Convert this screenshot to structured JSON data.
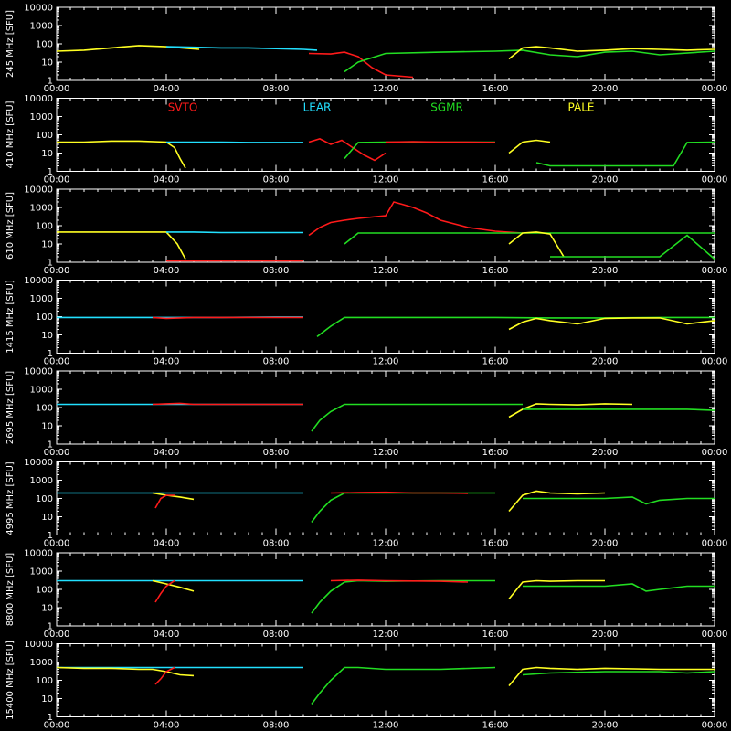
{
  "colors": {
    "background": "#000000",
    "axes": "#ffffff",
    "SVTO": "#ff1a1a",
    "LEAR": "#22e0ff",
    "SGMR": "#22dd22",
    "PALE": "#ffff22"
  },
  "chart_data": {
    "type": "line",
    "scale": "log",
    "ylim": [
      1,
      10000
    ],
    "y_ticks": [
      "10000",
      "1000",
      "100",
      "10",
      "1"
    ],
    "x_range_hours": [
      0,
      24
    ],
    "x_ticks": [
      "00:00",
      "04:00",
      "08:00",
      "12:00",
      "16:00",
      "20:00",
      "00:00"
    ],
    "legend": [
      "SVTO",
      "LEAR",
      "SGMR",
      "PALE"
    ],
    "panels": [
      {
        "ylabel": "245 MHz [SFU]",
        "series": [
          {
            "name": "PALE",
            "x": [
              0,
              1,
              2,
              3,
              4,
              5.2
            ],
            "y": [
              40,
              45,
              60,
              80,
              70,
              50
            ]
          },
          {
            "name": "LEAR",
            "x": [
              4,
              5,
              6,
              7,
              8,
              9,
              9.5
            ],
            "y": [
              70,
              65,
              60,
              60,
              55,
              50,
              45
            ]
          },
          {
            "name": "SVTO",
            "x": [
              9.2,
              10,
              10.5,
              11,
              11.5,
              12,
              13
            ],
            "y": [
              30,
              28,
              35,
              20,
              5,
              2,
              1.5
            ]
          },
          {
            "name": "SGMR",
            "x": [
              10.5,
              11,
              12,
              14,
              16,
              17,
              18,
              19,
              20,
              21,
              22,
              24
            ],
            "y": [
              3,
              10,
              30,
              35,
              40,
              45,
              25,
              20,
              35,
              40,
              25,
              40
            ]
          },
          {
            "name": "PALE",
            "x": [
              16.5,
              17,
              17.5,
              18,
              19,
              20,
              21,
              22,
              23,
              24
            ],
            "y": [
              15,
              60,
              70,
              60,
              40,
              45,
              55,
              50,
              45,
              50
            ]
          }
        ]
      },
      {
        "ylabel": "410 MHz [SFU]",
        "series": [
          {
            "name": "PALE",
            "x": [
              0,
              1,
              2,
              3,
              4,
              4.3,
              4.5,
              4.7
            ],
            "y": [
              40,
              40,
              45,
              45,
              40,
              20,
              5,
              1.5
            ]
          },
          {
            "name": "LEAR",
            "x": [
              4,
              5,
              6,
              7,
              8,
              9
            ],
            "y": [
              40,
              40,
              40,
              38,
              38,
              38
            ]
          },
          {
            "name": "SVTO",
            "x": [
              9.2,
              9.6,
              10,
              10.4,
              10.8,
              11.2,
              11.6,
              12
            ],
            "y": [
              40,
              60,
              30,
              50,
              20,
              8,
              4,
              10
            ]
          },
          {
            "name": "SGMR",
            "x": [
              10.5,
              11,
              12,
              14,
              16
            ],
            "y": [
              5,
              38,
              40,
              40,
              40
            ]
          },
          {
            "name": "SVTO",
            "x": [
              12,
              13,
              14,
              15,
              16
            ],
            "y": [
              40,
              42,
              40,
              40,
              38
            ]
          },
          {
            "name": "PALE",
            "x": [
              16.5,
              17,
              17.5,
              18
            ],
            "y": [
              10,
              40,
              50,
              40
            ]
          },
          {
            "name": "SGMR",
            "x": [
              17.5,
              18,
              20,
              22,
              22.5,
              23,
              24
            ],
            "y": [
              3,
              2,
              2,
              2,
              2,
              38,
              40
            ]
          }
        ]
      },
      {
        "ylabel": "610 MHz [SFU]",
        "series": [
          {
            "name": "PALE",
            "x": [
              0,
              1,
              2,
              3,
              4,
              4.4,
              4.7
            ],
            "y": [
              45,
              45,
              45,
              45,
              45,
              10,
              1.5
            ]
          },
          {
            "name": "LEAR",
            "x": [
              4,
              5,
              6,
              7,
              8,
              9
            ],
            "y": [
              45,
              45,
              42,
              42,
              42,
              42
            ]
          },
          {
            "name": "SVTO",
            "x": [
              4,
              5,
              6,
              7,
              8,
              9
            ],
            "y": [
              1.2,
              1.2,
              1.2,
              1.2,
              1.2,
              1.2
            ]
          },
          {
            "name": "SVTO",
            "x": [
              9.2,
              9.6,
              10,
              10.5,
              11,
              11.5,
              12,
              12.3,
              12.6,
              13,
              13.5,
              14,
              15,
              16,
              17
            ],
            "y": [
              30,
              80,
              150,
              200,
              250,
              300,
              350,
              2000,
              1500,
              1000,
              500,
              200,
              80,
              50,
              40
            ]
          },
          {
            "name": "SGMR",
            "x": [
              10.5,
              11,
              12,
              14,
              16,
              18,
              20,
              22,
              24
            ],
            "y": [
              10,
              40,
              40,
              40,
              40,
              40,
              40,
              40,
              40
            ]
          },
          {
            "name": "PALE",
            "x": [
              16.5,
              17,
              17.5,
              18,
              18.5
            ],
            "y": [
              10,
              40,
              45,
              35,
              2
            ]
          },
          {
            "name": "SGMR",
            "x": [
              18,
              20,
              22,
              23,
              24
            ],
            "y": [
              2,
              2,
              2,
              30,
              1.5
            ]
          }
        ]
      },
      {
        "ylabel": "1415 MHz [SFU]",
        "series": [
          {
            "name": "LEAR",
            "x": [
              0,
              2,
              4,
              6,
              8,
              9
            ],
            "y": [
              90,
              90,
              90,
              90,
              95,
              95
            ]
          },
          {
            "name": "SVTO",
            "x": [
              3.5,
              4,
              4.5,
              5,
              6,
              8,
              9
            ],
            "y": [
              90,
              80,
              85,
              90,
              90,
              90,
              90
            ]
          },
          {
            "name": "SGMR",
            "x": [
              9.5,
              10,
              10.5,
              11,
              12,
              14,
              16,
              18,
              20,
              22,
              24
            ],
            "y": [
              8,
              30,
              90,
              90,
              90,
              90,
              90,
              85,
              85,
              90,
              90
            ]
          },
          {
            "name": "PALE",
            "x": [
              16.5,
              17,
              17.5,
              18,
              19,
              20,
              21,
              22,
              23,
              24
            ],
            "y": [
              20,
              50,
              80,
              60,
              40,
              80,
              85,
              85,
              40,
              60
            ]
          }
        ]
      },
      {
        "ylabel": "2695 MHz [SFU]",
        "series": [
          {
            "name": "LEAR",
            "x": [
              0,
              2,
              4,
              6,
              8,
              9
            ],
            "y": [
              150,
              150,
              150,
              150,
              150,
              150
            ]
          },
          {
            "name": "SVTO",
            "x": [
              3.5,
              4,
              4.5,
              5,
              6,
              8,
              9
            ],
            "y": [
              150,
              160,
              170,
              150,
              150,
              150,
              150
            ]
          },
          {
            "name": "SGMR",
            "x": [
              9.3,
              9.6,
              10,
              10.5,
              11,
              12,
              14,
              16,
              17
            ],
            "y": [
              5,
              20,
              60,
              150,
              150,
              150,
              150,
              150,
              150
            ]
          },
          {
            "name": "PALE",
            "x": [
              16.5,
              17,
              17.5,
              18,
              19,
              20,
              21
            ],
            "y": [
              30,
              80,
              160,
              150,
              140,
              160,
              150
            ]
          },
          {
            "name": "SGMR",
            "x": [
              17,
              18,
              20,
              22,
              23,
              24
            ],
            "y": [
              80,
              80,
              80,
              80,
              80,
              70
            ]
          }
        ]
      },
      {
        "ylabel": "4995 MHz [SFU]",
        "series": [
          {
            "name": "LEAR",
            "x": [
              0,
              2,
              4,
              6,
              8,
              9
            ],
            "y": [
              200,
              200,
              200,
              200,
              200,
              200
            ]
          },
          {
            "name": "PALE",
            "x": [
              3.5,
              4,
              4.5,
              5
            ],
            "y": [
              200,
              150,
              120,
              90
            ]
          },
          {
            "name": "SVTO",
            "x": [
              3.6,
              3.8,
              4,
              4.3
            ],
            "y": [
              30,
              100,
              150,
              150
            ]
          },
          {
            "name": "SGMR",
            "x": [
              9.3,
              9.6,
              10,
              10.5,
              11,
              12,
              14,
              16
            ],
            "y": [
              5,
              20,
              80,
              200,
              200,
              200,
              200,
              200
            ]
          },
          {
            "name": "SVTO",
            "x": [
              10,
              11,
              12,
              13,
              14,
              15
            ],
            "y": [
              200,
              210,
              220,
              200,
              200,
              190
            ]
          },
          {
            "name": "PALE",
            "x": [
              16.5,
              17,
              17.5,
              18,
              19,
              20
            ],
            "y": [
              20,
              150,
              250,
              200,
              180,
              200
            ]
          },
          {
            "name": "SGMR",
            "x": [
              17,
              18,
              20,
              21,
              21.5,
              22,
              23,
              24
            ],
            "y": [
              100,
              100,
              100,
              120,
              50,
              80,
              100,
              100
            ]
          }
        ]
      },
      {
        "ylabel": "8800 MHz [SFU]",
        "series": [
          {
            "name": "LEAR",
            "x": [
              0,
              2,
              4,
              6,
              8,
              9
            ],
            "y": [
              300,
              300,
              300,
              300,
              300,
              300
            ]
          },
          {
            "name": "PALE",
            "x": [
              3.5,
              4,
              4.5,
              5
            ],
            "y": [
              300,
              200,
              130,
              80
            ]
          },
          {
            "name": "SVTO",
            "x": [
              3.6,
              3.8,
              4,
              4.3
            ],
            "y": [
              20,
              60,
              150,
              300
            ]
          },
          {
            "name": "SGMR",
            "x": [
              9.3,
              9.6,
              10,
              10.5,
              11,
              12,
              14,
              16
            ],
            "y": [
              5,
              20,
              80,
              250,
              300,
              280,
              300,
              300
            ]
          },
          {
            "name": "SVTO",
            "x": [
              10,
              11,
              12,
              13,
              14,
              15
            ],
            "y": [
              300,
              320,
              300,
              290,
              280,
              250
            ]
          },
          {
            "name": "PALE",
            "x": [
              16.5,
              17,
              17.5,
              18,
              19,
              20
            ],
            "y": [
              30,
              250,
              300,
              280,
              300,
              300
            ]
          },
          {
            "name": "SGMR",
            "x": [
              17,
              18,
              20,
              21,
              21.5,
              22,
              23,
              24
            ],
            "y": [
              150,
              150,
              150,
              200,
              80,
              100,
              150,
              150
            ]
          }
        ]
      },
      {
        "ylabel": "15400 MHz [SFU]",
        "series": [
          {
            "name": "LEAR",
            "x": [
              0,
              2,
              4,
              6,
              8,
              9
            ],
            "y": [
              500,
              500,
              500,
              500,
              500,
              500
            ]
          },
          {
            "name": "PALE",
            "x": [
              0,
              1,
              2,
              3,
              3.5,
              4,
              4.5,
              5
            ],
            "y": [
              500,
              450,
              450,
              400,
              400,
              300,
              200,
              180
            ]
          },
          {
            "name": "SVTO",
            "x": [
              3.6,
              3.8,
              4,
              4.3
            ],
            "y": [
              60,
              120,
              300,
              500
            ]
          },
          {
            "name": "SGMR",
            "x": [
              9.3,
              9.6,
              10,
              10.5,
              11,
              12,
              14,
              16
            ],
            "y": [
              5,
              20,
              100,
              500,
              500,
              400,
              400,
              500
            ]
          },
          {
            "name": "PALE",
            "x": [
              16.5,
              17,
              17.5,
              18,
              19,
              20,
              22,
              24
            ],
            "y": [
              50,
              400,
              500,
              450,
              400,
              450,
              400,
              400
            ]
          },
          {
            "name": "SGMR",
            "x": [
              17,
              18,
              20,
              22,
              23,
              24
            ],
            "y": [
              200,
              250,
              300,
              300,
              250,
              300
            ]
          }
        ]
      }
    ]
  }
}
